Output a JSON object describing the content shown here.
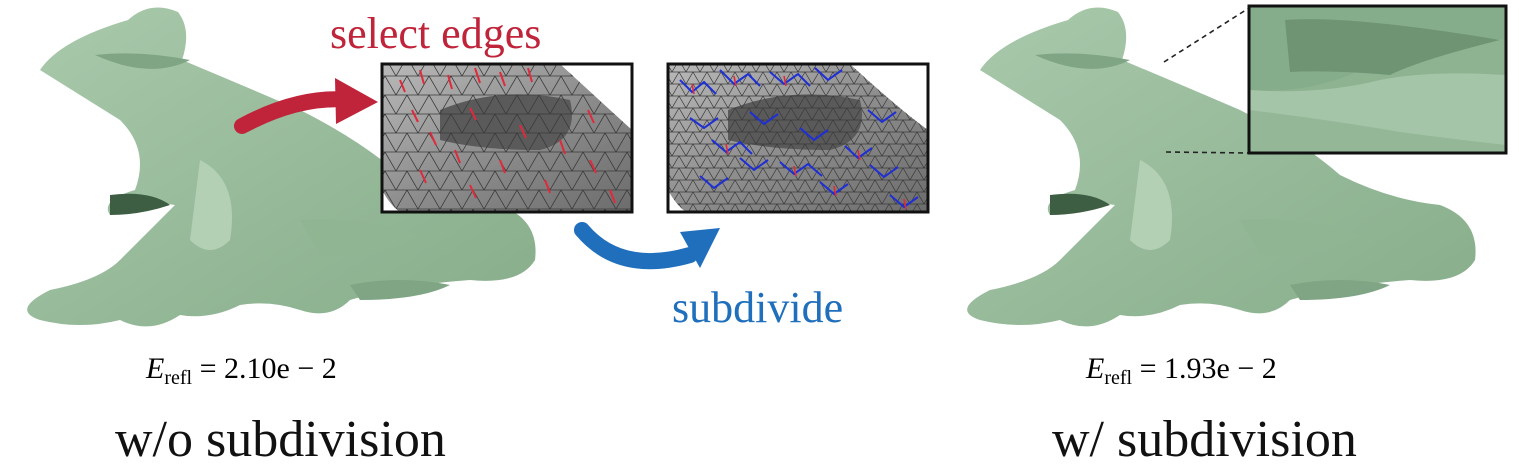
{
  "labels": {
    "select_edges": "select edges",
    "subdivide": "subdivide",
    "caption_left": "w/o subdivision",
    "caption_right": "w/ subdivision"
  },
  "errors": {
    "symbol": "E",
    "subscript": "refl",
    "left_value": "= 2.10e − 2",
    "right_value": "= 1.93e − 2"
  },
  "colors": {
    "frog_green": "#9cbf9f",
    "frog_dark": "#6f9474",
    "select_red": "#c0243a",
    "subdivide_blue": "#1f6fbd",
    "mesh_gray": "#8a8a8a"
  }
}
